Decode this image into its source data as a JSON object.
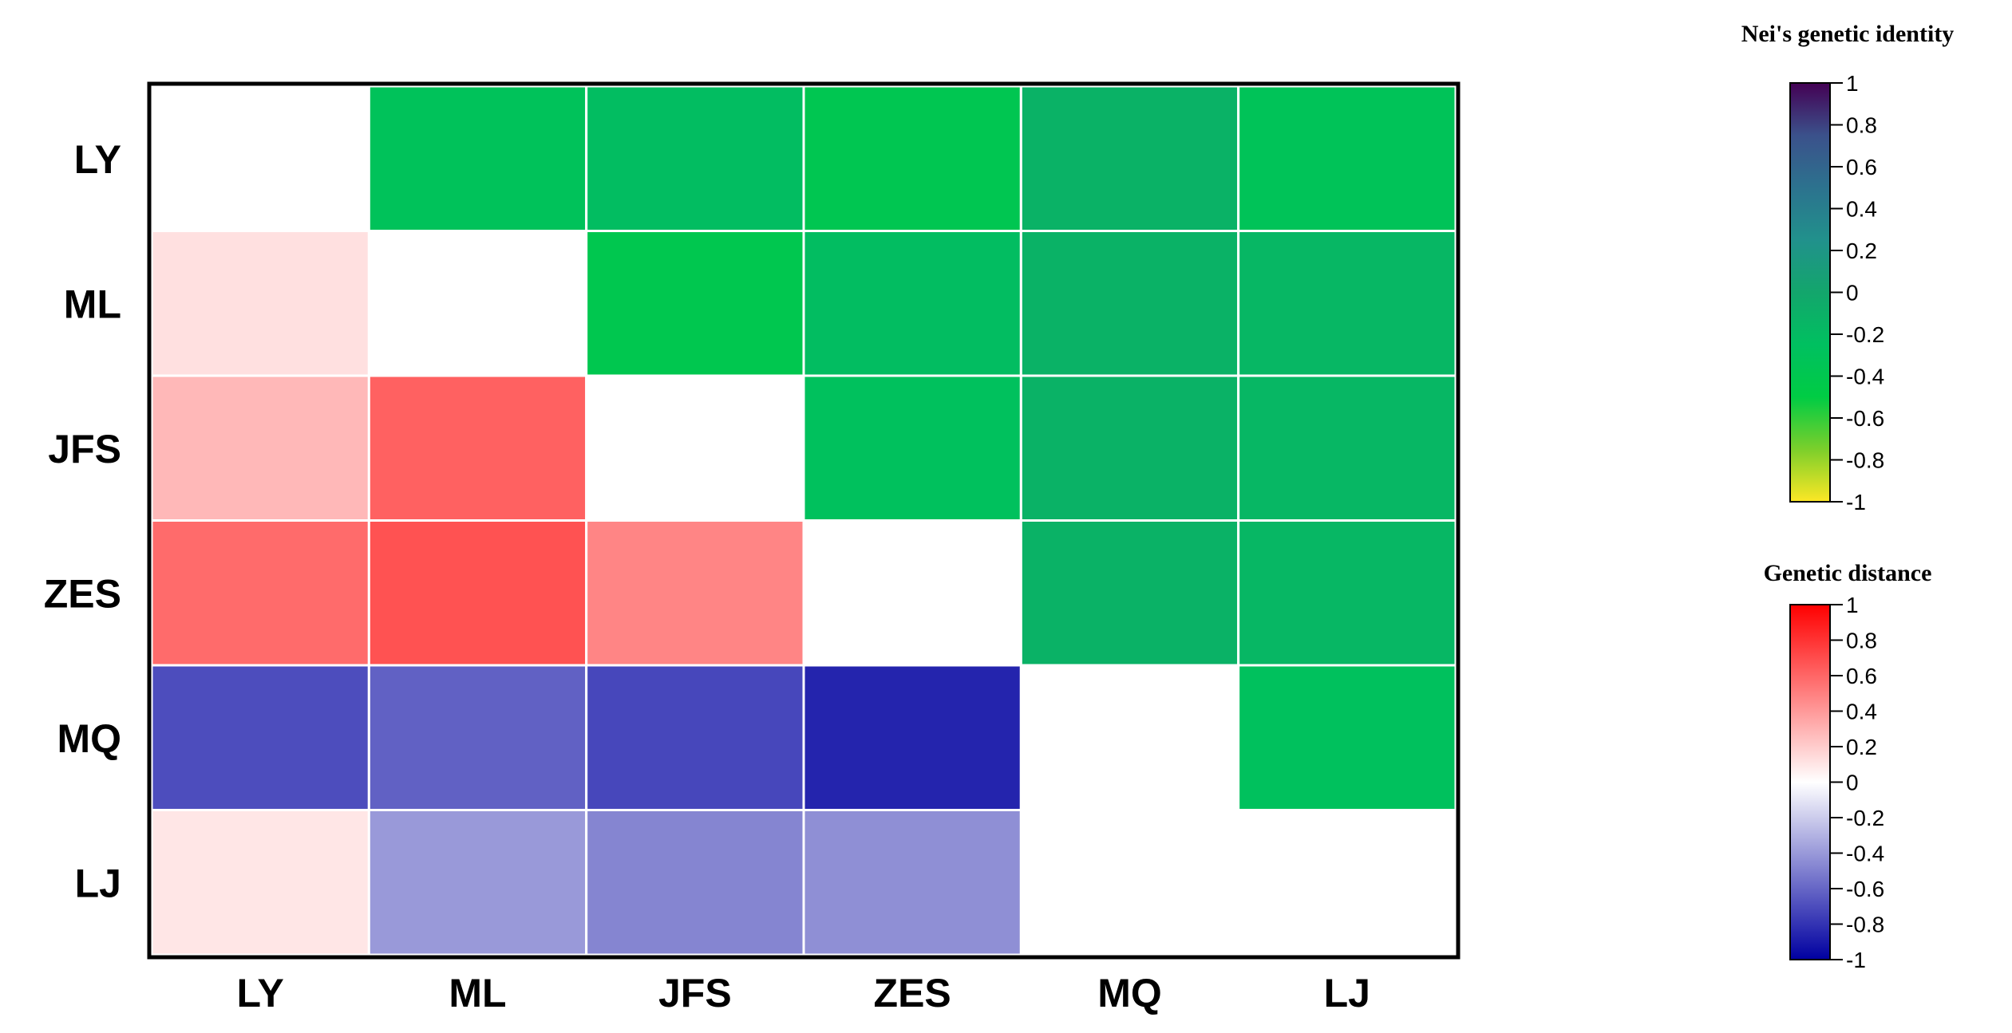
{
  "chart_data": {
    "type": "heatmap",
    "title": "",
    "xlabel": "",
    "ylabel": "",
    "categories": [
      "LY",
      "ML",
      "JFS",
      "ZES",
      "MQ",
      "LJ"
    ],
    "rows": [
      "LY",
      "ML",
      "JFS",
      "ZES",
      "MQ",
      "LJ"
    ],
    "upper_triangle_metric": "Nei's genetic identity",
    "lower_triangle_metric": "Genetic distance",
    "upper_values": [
      [
        null,
        -0.3,
        -0.22,
        -0.38,
        -0.12,
        -0.32
      ],
      [
        null,
        null,
        -0.4,
        -0.22,
        -0.12,
        -0.16
      ],
      [
        null,
        null,
        null,
        -0.28,
        -0.12,
        -0.16
      ],
      [
        null,
        null,
        null,
        null,
        -0.12,
        -0.16
      ],
      [
        null,
        null,
        null,
        null,
        null,
        -0.28
      ],
      [
        null,
        null,
        null,
        null,
        null,
        null
      ]
    ],
    "lower_values": [
      [
        null,
        null,
        null,
        null,
        null,
        null
      ],
      [
        0.12,
        null,
        null,
        null,
        null,
        null
      ],
      [
        0.28,
        0.62,
        null,
        null,
        null,
        null
      ],
      [
        0.58,
        0.68,
        0.48,
        null,
        null,
        null
      ],
      [
        -0.7,
        -0.62,
        -0.72,
        -0.86,
        null,
        null
      ],
      [
        0.1,
        -0.4,
        -0.48,
        -0.44,
        0.0,
        null
      ]
    ],
    "colorbars": [
      {
        "label": "Nei's genetic identity",
        "range": [
          -1,
          1
        ],
        "ticks": [
          "1",
          "0.8",
          "0.6",
          "0.4",
          "0.2",
          "0",
          "-0.2",
          "-0.4",
          "-0.6",
          "-0.8",
          "-1"
        ],
        "colors": [
          "#440154",
          "#3b518b",
          "#2c728e",
          "#21918c",
          "#13a66c",
          "#00c060",
          "#00cc44",
          "#7ccf2b",
          "#fde725"
        ]
      },
      {
        "label": "Genetic distance",
        "range": [
          -1,
          1
        ],
        "ticks": [
          "1",
          "0.8",
          "0.6",
          "0.4",
          "0.2",
          "0",
          "-0.2",
          "-0.4",
          "-0.6",
          "-0.8",
          "-1"
        ],
        "colors": [
          "#ff0000",
          "#ffffff",
          "#0000a0"
        ]
      }
    ],
    "legend_position": "right",
    "grid": false
  }
}
